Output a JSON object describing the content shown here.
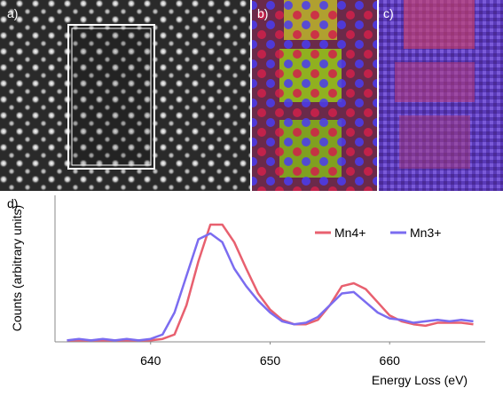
{
  "panel_labels": [
    "a)",
    "b)",
    "c)",
    "d)"
  ],
  "chart_data": {
    "type": "line",
    "xlabel": "Energy Loss (eV)",
    "ylabel": "Counts (arbitrary units)",
    "x": [
      633,
      634,
      635,
      636,
      637,
      638,
      639,
      640,
      641,
      642,
      643,
      644,
      645,
      646,
      647,
      648,
      649,
      650,
      651,
      652,
      653,
      654,
      655,
      656,
      657,
      658,
      659,
      660,
      661,
      662,
      663,
      664,
      665,
      666,
      667
    ],
    "series": [
      {
        "name": "Mn4+",
        "color": "#e8606f",
        "values": [
          0.01,
          0.01,
          0.01,
          0.01,
          0.01,
          0.01,
          0.01,
          0.01,
          0.02,
          0.05,
          0.25,
          0.55,
          0.8,
          0.8,
          0.68,
          0.5,
          0.33,
          0.22,
          0.15,
          0.12,
          0.12,
          0.15,
          0.25,
          0.38,
          0.4,
          0.36,
          0.27,
          0.18,
          0.14,
          0.12,
          0.11,
          0.13,
          0.13,
          0.13,
          0.12
        ]
      },
      {
        "name": "Mn3+",
        "color": "#7b6cf0",
        "values": [
          0.01,
          0.02,
          0.01,
          0.02,
          0.01,
          0.02,
          0.01,
          0.02,
          0.05,
          0.2,
          0.45,
          0.7,
          0.74,
          0.68,
          0.5,
          0.38,
          0.28,
          0.2,
          0.14,
          0.12,
          0.13,
          0.17,
          0.25,
          0.33,
          0.34,
          0.27,
          0.2,
          0.16,
          0.15,
          0.13,
          0.14,
          0.15,
          0.14,
          0.15,
          0.14
        ]
      }
    ],
    "xlim": [
      632,
      668
    ],
    "ylim": [
      0,
      1
    ],
    "xticks": [
      640,
      650,
      660
    ],
    "grid": false,
    "legend": "upper right"
  }
}
